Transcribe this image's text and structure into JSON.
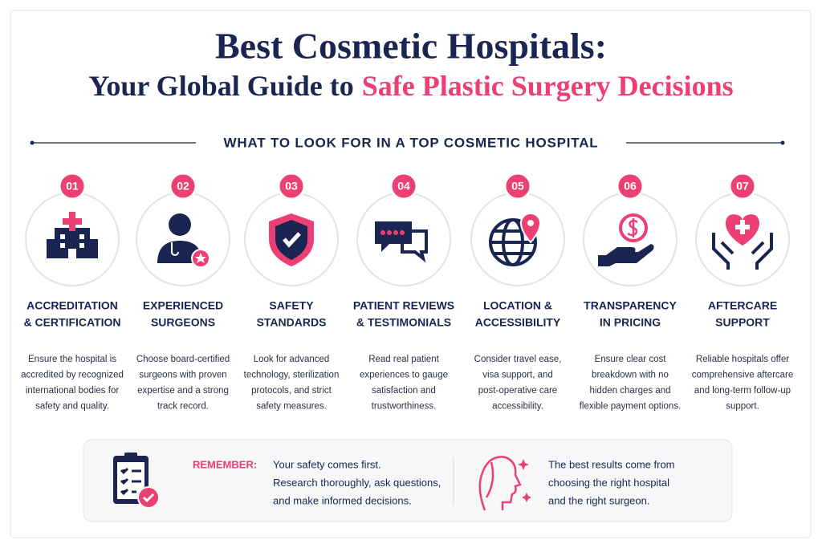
{
  "header": {
    "title_line1": "Best Cosmetic Hospitals:",
    "title_line2_plain": "Your Global Guide to",
    "title_line2_highlight": "Safe Plastic Surgery Decisions",
    "subtitle": "WHAT TO LOOK FOR IN A TOP COSMETIC HOSPITAL"
  },
  "items": [
    {
      "number": "01",
      "title_lines": [
        "ACCREDITATION",
        "& CERTIFICATION"
      ],
      "desc_lines": [
        "Ensure the hospital is",
        "accredited by recognized",
        "international bodies for",
        "safety and quality."
      ]
    },
    {
      "number": "02",
      "title_lines": [
        "EXPERIENCED",
        "SURGEONS"
      ],
      "desc_lines": [
        "Choose board-certified",
        "surgeons with proven",
        "expertise and a strong",
        "track record."
      ]
    },
    {
      "number": "03",
      "title_lines": [
        "SAFETY",
        "STANDARDS"
      ],
      "desc_lines": [
        "Look for advanced",
        "technology, sterilization",
        "protocols, and strict",
        "safety measures."
      ]
    },
    {
      "number": "04",
      "title_lines": [
        "PATIENT REVIEWS",
        "& TESTIMONIALS"
      ],
      "desc_lines": [
        "Read real patient",
        "experiences to gauge",
        "satisfaction and",
        "trustworthiness."
      ]
    },
    {
      "number": "05",
      "title_lines": [
        "LOCATION &",
        "ACCESSIBILITY"
      ],
      "desc_lines": [
        "Consider travel ease,",
        "visa support, and",
        "post-operative care",
        "accessibility."
      ]
    },
    {
      "number": "06",
      "title_lines": [
        "TRANSPARENCY",
        "IN PRICING"
      ],
      "desc_lines": [
        "Ensure clear cost",
        "breakdown with no",
        "hidden charges and",
        "flexible payment options."
      ]
    },
    {
      "number": "07",
      "title_lines": [
        "AFTERCARE",
        "SUPPORT"
      ],
      "desc_lines": [
        "Reliable hospitals offer",
        "comprehensive aftercare",
        "and long-term follow-up",
        "support."
      ]
    }
  ],
  "footer": {
    "label": "REMEMBER:",
    "left_lines": [
      "Your safety comes first.",
      "Research thoroughly, ask questions,",
      "and make informed decisions."
    ],
    "right_lines": [
      "The best results come from",
      "choosing the right hospital",
      "and the right surgeon."
    ]
  }
}
